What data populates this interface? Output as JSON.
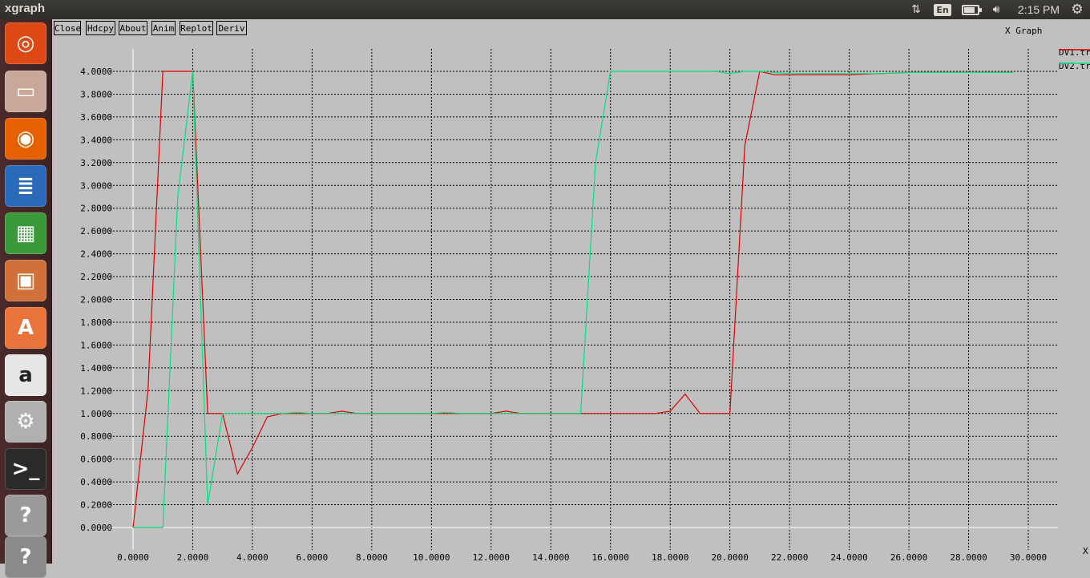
{
  "topbar": {
    "app_title": "xgraph",
    "language": "En",
    "clock": "2:15 PM",
    "battery_level": 0.8,
    "icons": [
      "network-updown-icon",
      "keyboard-language-icon",
      "battery-icon",
      "volume-icon",
      "session-gear-icon"
    ]
  },
  "launcher": {
    "items": [
      {
        "name": "ubuntu-dash",
        "glyph": "◎",
        "color": "#dd4814"
      },
      {
        "name": "files",
        "glyph": "▭",
        "color": "#c9a89a"
      },
      {
        "name": "firefox",
        "glyph": "◉",
        "color": "#e66000"
      },
      {
        "name": "libreoffice-writer",
        "glyph": "≣",
        "color": "#2a6ab8"
      },
      {
        "name": "libreoffice-calc",
        "glyph": "▦",
        "color": "#3a9a3a"
      },
      {
        "name": "libreoffice-impress",
        "glyph": "▣",
        "color": "#d0703a"
      },
      {
        "name": "ubuntu-software-center",
        "glyph": "A",
        "color": "#e8743b"
      },
      {
        "name": "amazon",
        "glyph": "a",
        "color": "#e6e6e6"
      },
      {
        "name": "system-settings",
        "glyph": "⚙",
        "color": "#b0b0b0"
      },
      {
        "name": "terminal",
        "glyph": ">_",
        "color": "#2a2a2a"
      },
      {
        "name": "help",
        "glyph": "?",
        "color": "#9a9a9a"
      },
      {
        "name": "help-2",
        "glyph": "?",
        "color": "#8a8a8a"
      }
    ]
  },
  "toolbar": {
    "buttons": [
      "Close",
      "Hdcpy",
      "About",
      "Anim",
      "Replot",
      "Deriv"
    ]
  },
  "window_label": "X Graph",
  "chart_data": {
    "type": "line",
    "title": "",
    "xlabel": "X",
    "ylabel": "",
    "xlim": [
      0,
      30
    ],
    "ylim": [
      0,
      4
    ],
    "x_ticks": [
      "0.0000",
      "2.0000",
      "4.0000",
      "6.0000",
      "8.0000",
      "10.0000",
      "12.0000",
      "14.0000",
      "16.0000",
      "18.0000",
      "20.0000",
      "22.0000",
      "24.0000",
      "26.0000",
      "28.0000",
      "30.0000"
    ],
    "y_ticks": [
      "0.0000",
      "0.2000",
      "0.4000",
      "0.6000",
      "0.8000",
      "1.0000",
      "1.2000",
      "1.4000",
      "1.6000",
      "1.8000",
      "2.0000",
      "2.2000",
      "2.4000",
      "2.6000",
      "2.8000",
      "3.0000",
      "3.2000",
      "3.4000",
      "3.6000",
      "3.8000",
      "4.0000"
    ],
    "grid": true,
    "legend_position": "top-right",
    "series": [
      {
        "name": "DV1.tr",
        "color": "#e00000",
        "x": [
          0,
          0.5,
          1,
          1.5,
          2,
          2.5,
          3,
          3.5,
          4,
          4.5,
          5,
          5.5,
          6,
          6.5,
          7,
          7.5,
          8,
          10,
          10.5,
          11,
          11.5,
          12,
          12.5,
          13,
          15,
          17.5,
          18,
          18.5,
          19,
          19.5,
          20,
          20.5,
          21,
          21.5,
          22,
          23,
          24,
          25,
          26,
          27,
          28,
          29,
          29.5
        ],
        "y": [
          0,
          1.2,
          4,
          4,
          4,
          1,
          1,
          0.47,
          0.7,
          0.97,
          1.0,
          1.0,
          1.0,
          1.0,
          1.02,
          1.0,
          1.0,
          1.0,
          1.0,
          1.0,
          1.0,
          1.0,
          1.02,
          1.0,
          1.0,
          1.0,
          1.02,
          1.17,
          1.0,
          1.0,
          1.0,
          3.35,
          4.0,
          3.97,
          3.97,
          3.97,
          3.97,
          3.98,
          3.99,
          3.99,
          3.99,
          3.99,
          3.99
        ]
      },
      {
        "name": "DV2.tr",
        "color": "#00e080",
        "x": [
          0,
          1,
          1.5,
          2,
          2.5,
          3,
          3.5,
          4,
          5,
          5.5,
          6,
          8,
          10,
          10.5,
          11,
          11.5,
          12,
          14,
          15,
          15.5,
          16,
          18,
          19,
          19.5,
          20,
          20.5,
          21,
          22,
          23,
          24,
          25,
          26,
          27,
          28,
          29,
          29.5
        ],
        "y": [
          0,
          0,
          2.9,
          4,
          0.2,
          1,
          1,
          1,
          1,
          1.01,
          1,
          1,
          1,
          1.01,
          1,
          1,
          1,
          1,
          1,
          3.2,
          4,
          4,
          4,
          4,
          3.98,
          4,
          4,
          3.98,
          3.98,
          3.98,
          3.98,
          3.99,
          3.99,
          3.99,
          3.99,
          3.99
        ]
      }
    ]
  }
}
